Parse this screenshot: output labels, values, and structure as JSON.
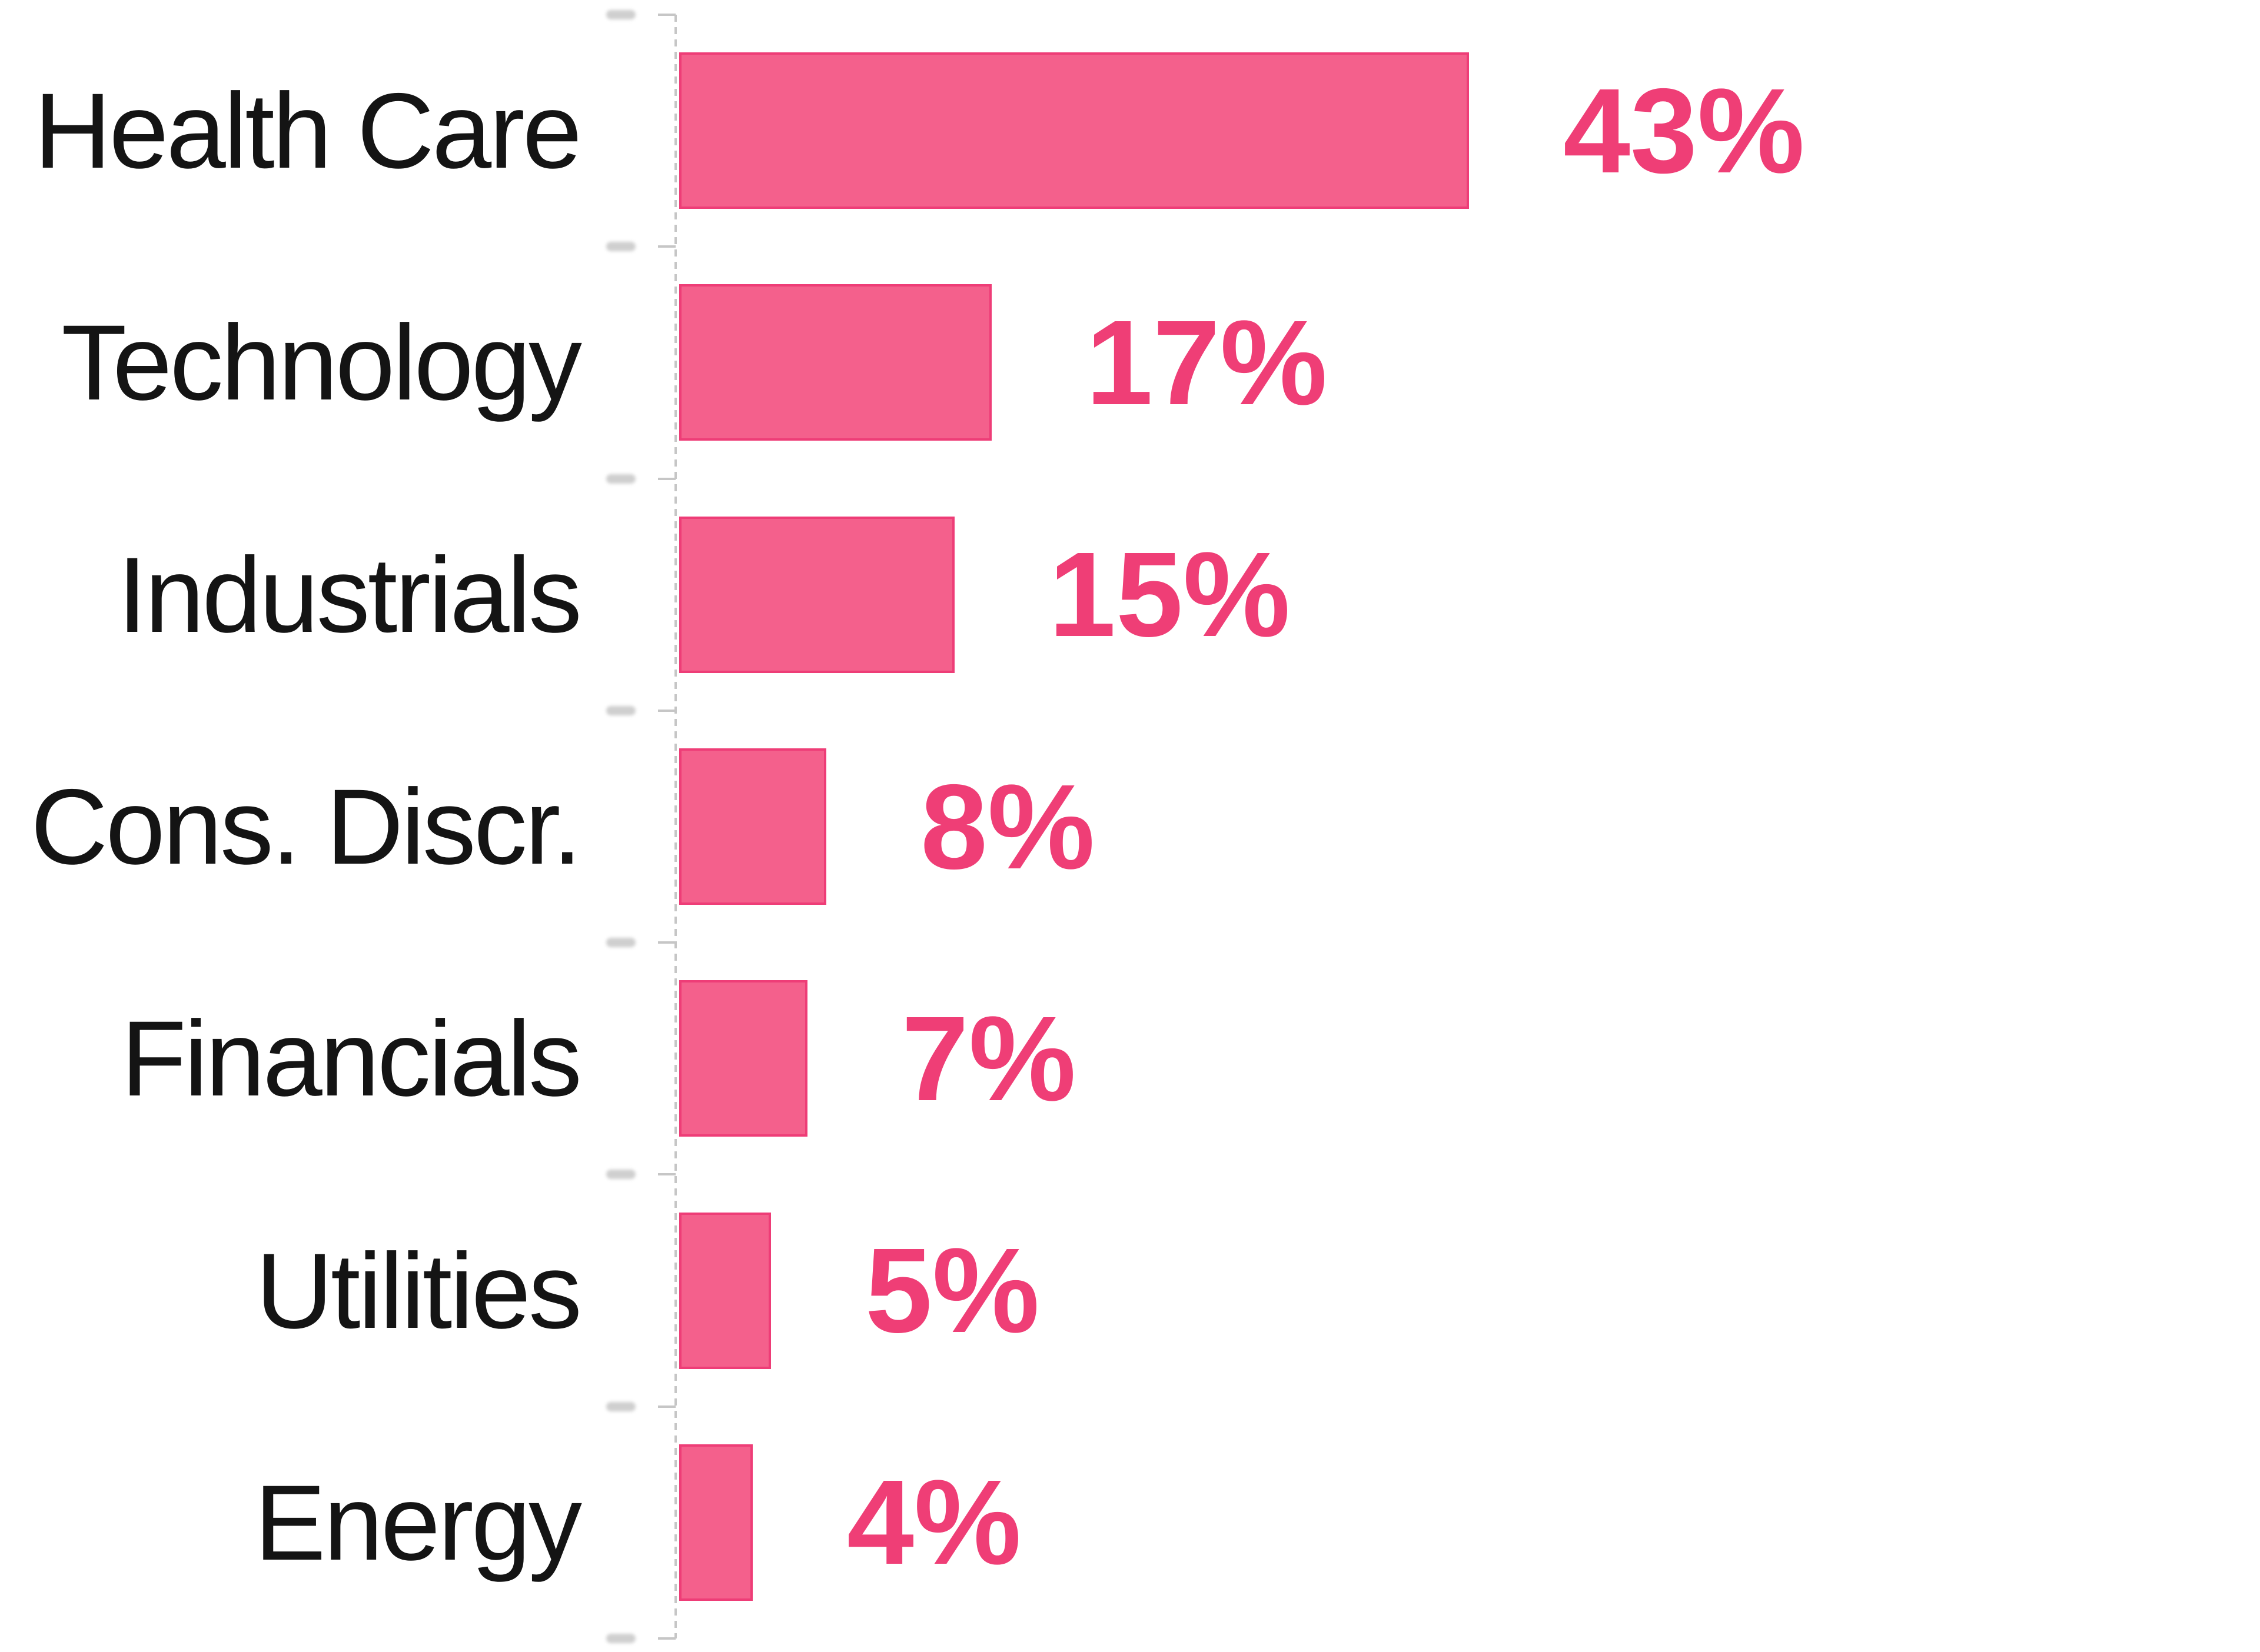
{
  "chart_data": {
    "type": "bar",
    "orientation": "horizontal",
    "title": "",
    "xlabel": "",
    "ylabel": "",
    "categories": [
      "Health Care",
      "Technology",
      "Industrials",
      "Cons. Discr.",
      "Financials",
      "Utilities",
      "Energy"
    ],
    "values": [
      43,
      17,
      15,
      8,
      7,
      5,
      4
    ],
    "value_labels": [
      "43%",
      "17%",
      "15%",
      "8%",
      "7%",
      "5%",
      "4%"
    ],
    "xlim": [
      0,
      45
    ],
    "grid": false,
    "legend": false,
    "value_label_position": "right-of-bar-end",
    "category_label_position": "left-of-axis-right-aligned",
    "tick_marks_count": 8,
    "tick_labels_legible": false
  },
  "colors": {
    "bar_fill": "#F4608C",
    "bar_edge": "#EE3D77",
    "value_label": "#EF3E76",
    "category_label": "#141414",
    "axis": "#C6C6C6",
    "background": "#FFFFFF"
  }
}
